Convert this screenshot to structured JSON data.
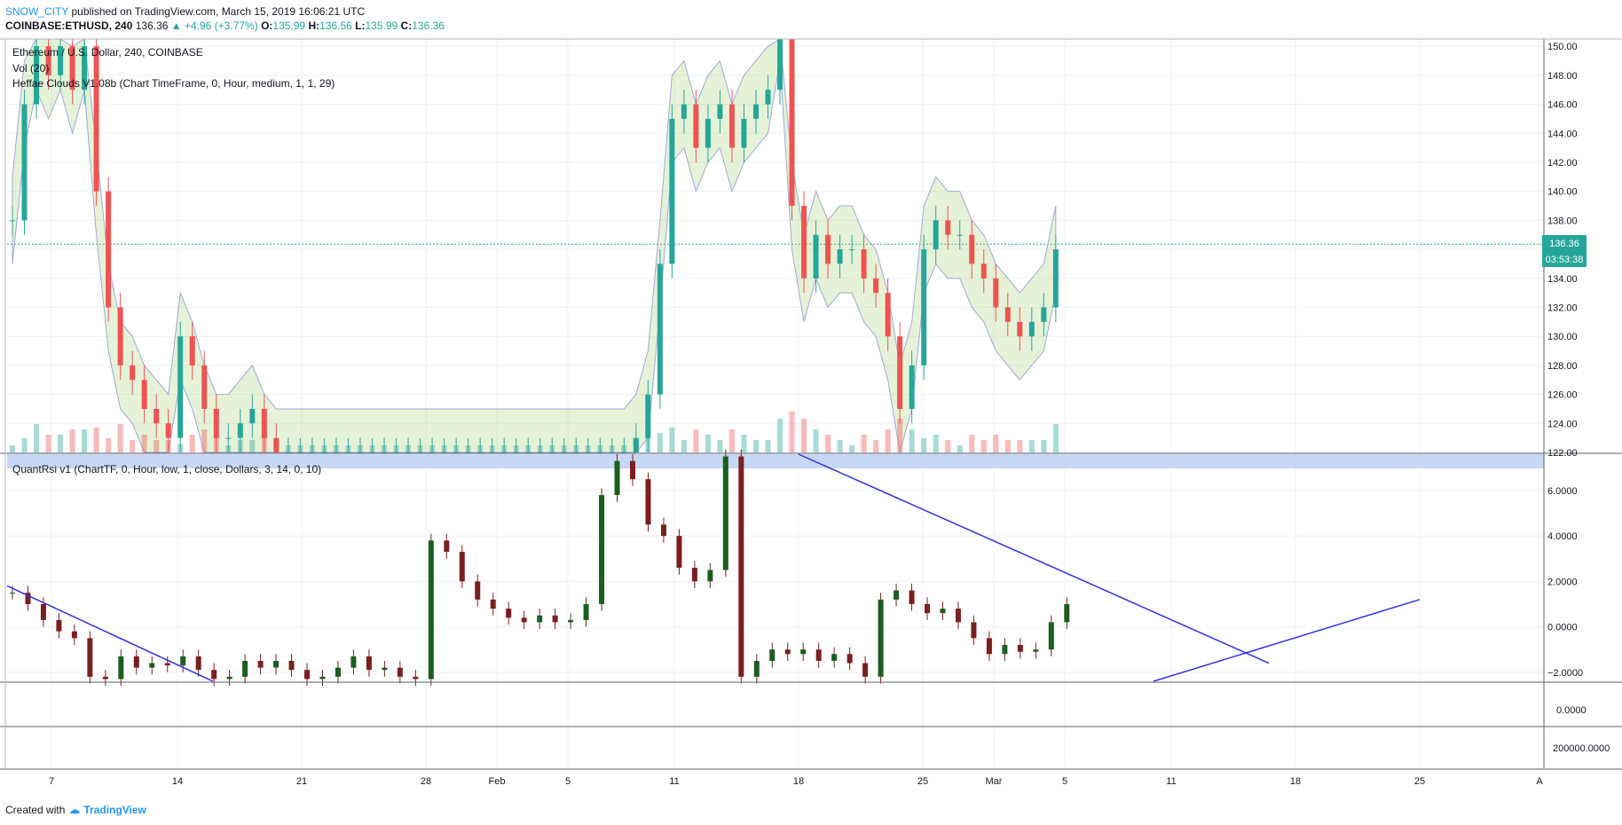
{
  "header": {
    "author": "SNOW_CITY",
    "published": "published on TradingView.com, March 15, 2019 16:06:21 UTC",
    "symbol": "COINBASE:ETHUSD, 240",
    "last": "136.36",
    "change": "+4.96 (+3.77%)",
    "o_label": "O:",
    "o": "135.99",
    "h_label": "H:",
    "h": "136.56",
    "l_label": "L:",
    "l": "135.99",
    "c_label": "C:",
    "c": "136.36"
  },
  "legend": {
    "main": "Ethereum / U.S. Dollar, 240, COINBASE",
    "vol": "Vol (20)",
    "clouds": "Heffae Clouds V1.08b (Chart TimeFrame, 0, Hour, medium, 1, 1, 29)",
    "rsi": "QuantRsi v1 (ChartTF, 0, Hour, low, 1, close, Dollars, 3, 14, 0, 10)"
  },
  "price_badge": {
    "price": "136.36",
    "countdown": "03:53:38"
  },
  "footer": {
    "created": "Created with",
    "brand": "TradingView"
  },
  "colors": {
    "up": "#26a69a",
    "down": "#ef5350",
    "trend": "#3030e0",
    "cloud_green": "#8bc34a",
    "cloud_red": "#ff7043"
  },
  "chart_data": {
    "type": "candlestick",
    "x_ticks": [
      "7",
      "14",
      "21",
      "28",
      "Feb",
      "5",
      "11",
      "18",
      "25",
      "Mar",
      "5",
      "11",
      "18",
      "25",
      "A"
    ],
    "panels": [
      {
        "name": "price",
        "ylim": [
          122,
          150.5
        ],
        "y_ticks": [
          "122.00",
          "124.00",
          "126.00",
          "128.00",
          "130.00",
          "132.00",
          "134.00",
          "136.00",
          "138.00",
          "140.00",
          "142.00",
          "144.00",
          "146.00",
          "148.00",
          "150.00"
        ],
        "last_price": 136.36
      },
      {
        "name": "QuantRsi",
        "ylim": [
          -2.4,
          7.6
        ],
        "y_ticks": [
          "−2.0000",
          "0.0000",
          "2.0000",
          "4.0000",
          "6.0000"
        ]
      },
      {
        "name": "panel3",
        "y_ticks": [
          "0.0000"
        ]
      },
      {
        "name": "panel4",
        "y_ticks": [
          "200000.0000"
        ]
      }
    ],
    "price_series": [
      [
        1,
        138
      ],
      [
        2,
        146
      ],
      [
        3,
        150
      ],
      [
        4,
        148
      ],
      [
        5,
        150
      ],
      [
        6,
        147
      ],
      [
        7,
        150
      ],
      [
        8,
        140
      ],
      [
        9,
        132
      ],
      [
        10,
        128
      ],
      [
        11,
        127
      ],
      [
        12,
        125
      ],
      [
        13,
        124
      ],
      [
        14,
        123
      ],
      [
        15,
        130
      ],
      [
        16,
        128
      ],
      [
        17,
        125
      ],
      [
        18,
        123
      ],
      [
        19,
        123
      ],
      [
        20,
        124
      ],
      [
        21,
        125
      ],
      [
        22,
        123
      ],
      [
        23,
        122
      ],
      [
        24,
        122
      ],
      [
        25,
        122
      ],
      [
        26,
        122
      ],
      [
        27,
        122
      ],
      [
        28,
        122
      ],
      [
        29,
        122
      ],
      [
        30,
        122
      ],
      [
        31,
        122
      ],
      [
        32,
        122
      ],
      [
        33,
        122
      ],
      [
        34,
        122
      ],
      [
        35,
        122
      ],
      [
        36,
        122
      ],
      [
        37,
        122
      ],
      [
        38,
        122
      ],
      [
        39,
        122
      ],
      [
        40,
        122
      ],
      [
        41,
        122
      ],
      [
        42,
        122
      ],
      [
        43,
        122
      ],
      [
        44,
        122
      ],
      [
        45,
        122
      ],
      [
        46,
        122
      ],
      [
        47,
        122
      ],
      [
        48,
        122
      ],
      [
        49,
        122
      ],
      [
        50,
        122
      ],
      [
        51,
        122
      ],
      [
        52,
        122
      ],
      [
        53,
        123
      ],
      [
        54,
        126
      ],
      [
        55,
        135
      ],
      [
        56,
        145
      ],
      [
        57,
        146
      ],
      [
        58,
        143
      ],
      [
        59,
        145
      ],
      [
        60,
        146
      ],
      [
        61,
        143
      ],
      [
        62,
        145
      ],
      [
        63,
        146
      ],
      [
        64,
        147
      ],
      [
        65,
        152
      ],
      [
        66,
        139
      ],
      [
        67,
        134
      ],
      [
        68,
        137
      ],
      [
        69,
        135
      ],
      [
        70,
        136
      ],
      [
        71,
        136
      ],
      [
        72,
        134
      ],
      [
        73,
        133
      ],
      [
        74,
        130
      ],
      [
        75,
        125
      ],
      [
        76,
        128
      ],
      [
        77,
        136
      ],
      [
        78,
        138
      ],
      [
        79,
        137
      ],
      [
        80,
        137
      ],
      [
        81,
        135
      ],
      [
        82,
        134
      ],
      [
        83,
        132
      ],
      [
        84,
        131
      ],
      [
        85,
        130
      ],
      [
        86,
        131
      ],
      [
        87,
        132
      ],
      [
        88,
        136
      ]
    ],
    "rsi_series": [
      [
        1,
        1.5
      ],
      [
        2,
        1.0
      ],
      [
        3,
        0.3
      ],
      [
        4,
        -0.2
      ],
      [
        5,
        -0.5
      ],
      [
        6,
        -2.2
      ],
      [
        7,
        -2.3
      ],
      [
        8,
        -1.3
      ],
      [
        9,
        -1.8
      ],
      [
        10,
        -1.6
      ],
      [
        11,
        -1.7
      ],
      [
        12,
        -1.3
      ],
      [
        13,
        -1.9
      ],
      [
        14,
        -2.3
      ],
      [
        15,
        -2.2
      ],
      [
        16,
        -1.5
      ],
      [
        17,
        -1.8
      ],
      [
        18,
        -1.5
      ],
      [
        19,
        -1.9
      ],
      [
        20,
        -2.3
      ],
      [
        21,
        -2.2
      ],
      [
        22,
        -1.8
      ],
      [
        23,
        -1.3
      ],
      [
        24,
        -1.9
      ],
      [
        25,
        -1.8
      ],
      [
        26,
        -2.2
      ],
      [
        27,
        -2.3
      ],
      [
        28,
        3.8
      ],
      [
        29,
        3.3
      ],
      [
        30,
        2.0
      ],
      [
        31,
        1.2
      ],
      [
        32,
        0.8
      ],
      [
        33,
        0.4
      ],
      [
        34,
        0.2
      ],
      [
        35,
        0.5
      ],
      [
        36,
        0.2
      ],
      [
        37,
        0.3
      ],
      [
        38,
        1.0
      ],
      [
        39,
        5.8
      ],
      [
        40,
        7.3
      ],
      [
        41,
        6.5
      ],
      [
        42,
        4.5
      ],
      [
        43,
        4.0
      ],
      [
        44,
        2.6
      ],
      [
        45,
        2.0
      ],
      [
        46,
        2.5
      ],
      [
        47,
        7.5
      ],
      [
        48,
        -2.2
      ],
      [
        49,
        -1.5
      ],
      [
        50,
        -1.0
      ],
      [
        51,
        -1.2
      ],
      [
        52,
        -1.0
      ],
      [
        53,
        -1.5
      ],
      [
        54,
        -1.2
      ],
      [
        55,
        -1.6
      ],
      [
        56,
        -2.2
      ],
      [
        57,
        1.2
      ],
      [
        58,
        1.6
      ],
      [
        59,
        1.0
      ],
      [
        60,
        0.6
      ],
      [
        61,
        0.8
      ],
      [
        62,
        0.2
      ],
      [
        63,
        -0.5
      ],
      [
        64,
        -1.2
      ],
      [
        65,
        -0.8
      ],
      [
        66,
        -1.1
      ],
      [
        67,
        -1.0
      ],
      [
        68,
        0.2
      ],
      [
        69,
        1.0
      ]
    ],
    "trendlines": [
      {
        "panel": "price",
        "from_x_label": "18",
        "to_x_label": "Mar"
      },
      {
        "panel": "QuantRsi",
        "note": "descending"
      },
      {
        "panel": "QuantRsi",
        "note": "ascending"
      }
    ]
  }
}
